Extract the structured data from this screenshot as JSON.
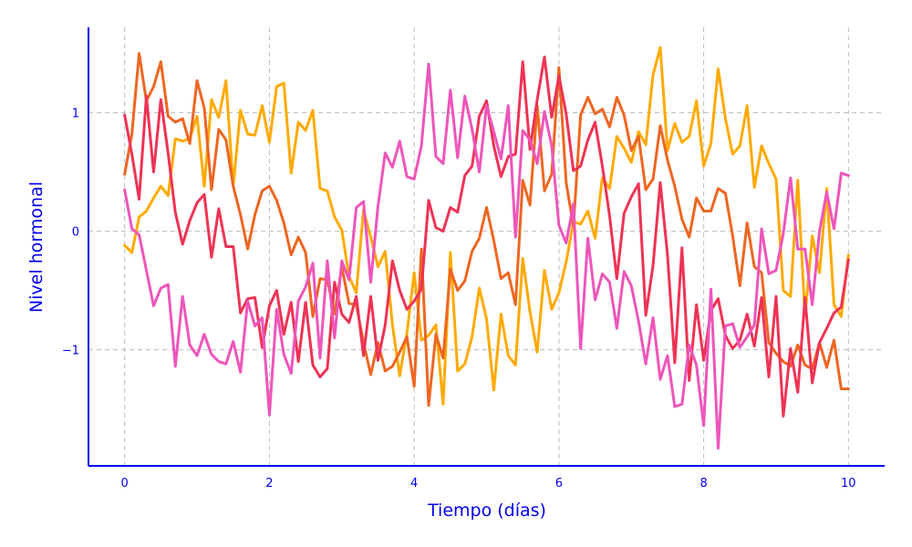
{
  "chart_data": {
    "type": "line",
    "title": "",
    "xlabel": "Tiempo (días)",
    "ylabel": "Nivel hormonal",
    "xlim": [
      -0.5,
      10.5
    ],
    "ylim": [
      -1.98,
      1.72
    ],
    "xticks": [
      0,
      2,
      4,
      6,
      8,
      10
    ],
    "xtick_labels": [
      "0",
      "2",
      "4",
      "6",
      "8",
      "10"
    ],
    "yticks": [
      -1,
      0,
      1
    ],
    "ytick_labels": [
      "−1",
      "0",
      "1"
    ],
    "grid": true,
    "legend": "none",
    "axis_color": "#0000ee",
    "grid_color": "#bbbbbb",
    "x": [
      0,
      0.1,
      0.2,
      0.3,
      0.4,
      0.5,
      0.6,
      0.7,
      0.8,
      0.9,
      1,
      1.1,
      1.2,
      1.3,
      1.4,
      1.5,
      1.6,
      1.7,
      1.8,
      1.9,
      2,
      2.1,
      2.2,
      2.3,
      2.4,
      2.5,
      2.6,
      2.7,
      2.8,
      2.9,
      3,
      3.1,
      3.2,
      3.3,
      3.4,
      3.5,
      3.6,
      3.7,
      3.8,
      3.9,
      4,
      4.1,
      4.2,
      4.3,
      4.4,
      4.5,
      4.6,
      4.7,
      4.8,
      4.9,
      5,
      5.1,
      5.2,
      5.3,
      5.4,
      5.5,
      5.6,
      5.7,
      5.8,
      5.9,
      6,
      6.1,
      6.2,
      6.3,
      6.4,
      6.5,
      6.6,
      6.7,
      6.8,
      6.9,
      7,
      7.1,
      7.2,
      7.3,
      7.4,
      7.5,
      7.6,
      7.7,
      7.8,
      7.9,
      8,
      8.1,
      8.2,
      8.3,
      8.4,
      8.5,
      8.6,
      8.7,
      8.8,
      8.9,
      9,
      9.1,
      9.2,
      9.3,
      9.4,
      9.5,
      9.6,
      9.7,
      9.8,
      9.9,
      10
    ],
    "series": [
      {
        "color": "#ffaa00",
        "values": [
          -0.12,
          -0.18,
          0.12,
          0.17,
          0.28,
          0.38,
          0.3,
          0.78,
          0.76,
          0.78,
          0.97,
          0.38,
          1.11,
          0.96,
          1.27,
          0.38,
          1.02,
          0.82,
          0.81,
          1.06,
          0.75,
          1.22,
          1.25,
          0.49,
          0.92,
          0.85,
          1.02,
          0.36,
          0.34,
          0.12,
          0.01,
          -0.38,
          -0.52,
          0.18,
          -0.05,
          -0.3,
          -0.17,
          -0.79,
          -1.22,
          -0.86,
          -0.35,
          -0.92,
          -0.88,
          -0.79,
          -1.46,
          -0.18,
          -1.18,
          -1.12,
          -0.89,
          -0.48,
          -0.74,
          -1.34,
          -0.7,
          -1.05,
          -1.13,
          -0.23,
          -0.68,
          -1.02,
          -0.33,
          -0.66,
          -0.52,
          -0.26,
          0.08,
          0.06,
          0.17,
          -0.06,
          0.45,
          0.36,
          0.8,
          0.7,
          0.58,
          0.84,
          0.73,
          1.32,
          1.55,
          0.68,
          0.91,
          0.75,
          0.8,
          1.1,
          0.55,
          0.74,
          1.37,
          0.95,
          0.65,
          0.72,
          1.06,
          0.37,
          0.72,
          0.57,
          0.44,
          -0.5,
          -0.55,
          0.43,
          -0.72,
          -0.04,
          -0.35,
          0.36,
          -0.62,
          -0.72,
          -0.2
        ]
      },
      {
        "color": "#ee6622",
        "values": [
          0.48,
          0.82,
          1.5,
          1.1,
          1.22,
          1.43,
          0.97,
          0.92,
          0.95,
          0.74,
          1.27,
          1.04,
          0.35,
          0.86,
          0.77,
          0.38,
          0.14,
          -0.15,
          0.14,
          0.34,
          0.38,
          0.26,
          0.07,
          -0.2,
          -0.05,
          -0.18,
          -0.72,
          -0.4,
          -0.41,
          -0.7,
          -0.3,
          -0.61,
          -0.62,
          -0.94,
          -1.21,
          -0.94,
          -1.18,
          -1.14,
          -1.02,
          -0.89,
          -1.31,
          -0.15,
          -1.47,
          -0.87,
          -1.07,
          -0.32,
          -0.5,
          -0.42,
          -0.17,
          -0.06,
          0.2,
          -0.08,
          -0.4,
          -0.35,
          -0.62,
          0.43,
          0.22,
          1.06,
          0.34,
          0.48,
          1.38,
          0.41,
          0.04,
          0.98,
          1.13,
          0.99,
          1.03,
          0.88,
          1.13,
          0.98,
          0.68,
          0.8,
          0.35,
          0.44,
          0.89,
          0.6,
          0.38,
          0.1,
          -0.05,
          0.28,
          0.17,
          0.17,
          0.36,
          0.32,
          -0.04,
          -0.46,
          0.07,
          -0.3,
          -0.35,
          -0.94,
          -1.03,
          -1.1,
          -1.14,
          -0.96,
          -1.13,
          -1.16,
          -0.94,
          -1.15,
          -0.92,
          -1.33,
          -1.33
        ]
      },
      {
        "color": "#ee3355",
        "values": [
          0.98,
          0.65,
          0.27,
          1.14,
          0.5,
          1.11,
          0.66,
          0.16,
          -0.11,
          0.09,
          0.24,
          0.31,
          -0.22,
          0.19,
          -0.13,
          -0.13,
          -0.69,
          -0.57,
          -0.56,
          -0.98,
          -0.63,
          -0.5,
          -0.87,
          -0.6,
          -1.1,
          -0.6,
          -1.13,
          -1.23,
          -1.16,
          -0.43,
          -0.7,
          -0.77,
          -0.55,
          -1.05,
          -0.55,
          -1.09,
          -0.79,
          -0.25,
          -0.5,
          -0.66,
          -0.59,
          -0.49,
          0.26,
          0.03,
          0.0,
          0.2,
          0.16,
          0.47,
          0.55,
          0.97,
          1.1,
          0.72,
          0.46,
          0.63,
          0.65,
          1.43,
          0.69,
          1.11,
          1.47,
          0.96,
          1.31,
          0.99,
          0.51,
          0.55,
          0.77,
          0.92,
          0.55,
          0.13,
          -0.4,
          0.15,
          0.29,
          0.4,
          -0.71,
          -0.29,
          0.41,
          -0.2,
          -1.11,
          -0.14,
          -1.26,
          -0.62,
          -1.09,
          -0.67,
          -0.57,
          -0.88,
          -0.99,
          -0.92,
          -0.7,
          -0.97,
          -0.56,
          -1.23,
          -0.55,
          -1.56,
          -0.99,
          -1.36,
          -0.56,
          -1.28,
          -0.94,
          -0.82,
          -0.69,
          -0.64,
          -0.24
        ]
      },
      {
        "color": "#ee55bb",
        "values": [
          0.35,
          0.02,
          -0.03,
          -0.33,
          -0.63,
          -0.48,
          -0.45,
          -1.14,
          -0.55,
          -0.96,
          -1.05,
          -0.87,
          -1.04,
          -1.1,
          -1.12,
          -0.93,
          -1.19,
          -0.59,
          -0.8,
          -0.73,
          -1.55,
          -0.66,
          -1.04,
          -1.2,
          -0.59,
          -0.47,
          -0.27,
          -1.07,
          -0.25,
          -0.9,
          -0.25,
          -0.41,
          0.2,
          0.25,
          -0.43,
          0.21,
          0.66,
          0.54,
          0.76,
          0.46,
          0.44,
          0.72,
          1.41,
          0.63,
          0.57,
          1.19,
          0.62,
          1.14,
          0.86,
          0.5,
          1.06,
          0.84,
          0.61,
          1.06,
          -0.05,
          0.85,
          0.77,
          0.57,
          1.01,
          0.72,
          0.05,
          -0.1,
          0.23,
          -0.99,
          -0.06,
          -0.58,
          -0.36,
          -0.43,
          -0.82,
          -0.34,
          -0.46,
          -0.76,
          -1.12,
          -0.73,
          -1.25,
          -1.05,
          -1.48,
          -1.46,
          -0.96,
          -1.13,
          -1.64,
          -0.49,
          -1.83,
          -0.8,
          -0.78,
          -0.98,
          -0.89,
          -0.79,
          0.02,
          -0.36,
          -0.33,
          -0.02,
          0.45,
          -0.15,
          -0.15,
          -0.62,
          0.0,
          0.33,
          0.02,
          0.49,
          0.47
        ]
      }
    ]
  }
}
